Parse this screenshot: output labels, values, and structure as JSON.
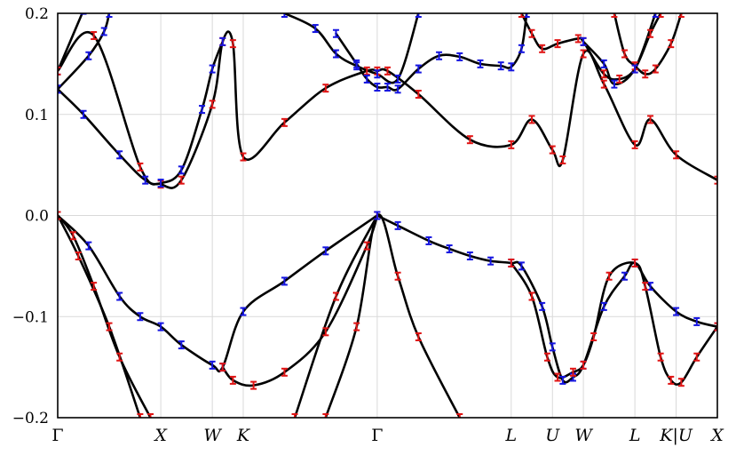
{
  "chart_data": {
    "type": "line",
    "title": "",
    "xlabel": "",
    "ylabel": "",
    "ylim": [
      -0.2,
      0.2
    ],
    "yticks": [
      {
        "value": 0.2,
        "label": "0.2"
      },
      {
        "value": 0.1,
        "label": "0.1"
      },
      {
        "value": 0.0,
        "label": "0.0"
      },
      {
        "value": -0.1,
        "label": "−0.1"
      },
      {
        "value": -0.2,
        "label": "−0.2"
      }
    ],
    "xticks": [
      {
        "k": 0.0,
        "label": "Γ",
        "italic": false
      },
      {
        "k": 1.0,
        "label": "X",
        "italic": true
      },
      {
        "k": 1.5,
        "label": "W",
        "italic": true
      },
      {
        "k": 1.8,
        "label": "K",
        "italic": true
      },
      {
        "k": 3.1,
        "label": "Γ",
        "italic": false
      },
      {
        "k": 4.4,
        "label": "L",
        "italic": true
      },
      {
        "k": 4.8,
        "label": "U",
        "italic": true
      },
      {
        "k": 5.1,
        "label": "W",
        "italic": true
      },
      {
        "k": 5.6,
        "label": "L",
        "italic": true
      },
      {
        "k": 6.0,
        "label": "K|U",
        "italic": true
      },
      {
        "k": 6.4,
        "label": "X",
        "italic": true
      }
    ],
    "xlim": [
      0,
      6.4
    ],
    "grid": true,
    "line_color": "#000000",
    "marker_colors": {
      "blue": "#1515e0",
      "red": "#e01515"
    },
    "series": [
      {
        "color": "black",
        "points": [
          [
            0,
            0.143
          ],
          [
            0.25,
            0.203
          ]
        ],
        "markers": "blue"
      },
      {
        "color": "black",
        "points": [
          [
            0,
            0.143
          ],
          [
            0.35,
            0.178
          ],
          [
            0.8,
            0.048
          ],
          [
            1.0,
            0.031
          ],
          [
            1.2,
            0.035
          ],
          [
            1.5,
            0.11
          ],
          [
            1.6,
            0.172
          ],
          [
            1.7,
            0.17
          ],
          [
            1.8,
            0.058
          ],
          [
            2.2,
            0.092
          ],
          [
            2.6,
            0.126
          ],
          [
            3.0,
            0.143
          ],
          [
            3.1,
            0.143
          ],
          [
            3.2,
            0.143
          ],
          [
            3.5,
            0.12
          ],
          [
            4.0,
            0.075
          ],
          [
            4.4,
            0.07
          ],
          [
            4.6,
            0.095
          ],
          [
            4.8,
            0.065
          ],
          [
            4.9,
            0.055
          ],
          [
            5.1,
            0.16
          ],
          [
            5.3,
            0.13
          ],
          [
            5.6,
            0.07
          ],
          [
            5.75,
            0.095
          ],
          [
            6.0,
            0.06
          ],
          [
            6.4,
            0.035
          ]
        ],
        "markers": "red"
      },
      {
        "color": "black",
        "points": [
          [
            0,
            0.125
          ],
          [
            0.25,
            0.1
          ],
          [
            0.6,
            0.06
          ],
          [
            0.85,
            0.035
          ],
          [
            1.0,
            0.032
          ],
          [
            1.2,
            0.045
          ],
          [
            1.4,
            0.105
          ],
          [
            1.5,
            0.145
          ],
          [
            1.6,
            0.172
          ]
        ],
        "markers": "blue"
      },
      {
        "color": "black",
        "points": [
          [
            0,
            0.125
          ],
          [
            0.3,
            0.158
          ],
          [
            0.45,
            0.182
          ],
          [
            0.5,
            0.2
          ]
        ],
        "markers": "blue"
      },
      {
        "color": "black",
        "points": [
          [
            2.2,
            0.2
          ],
          [
            2.5,
            0.185
          ],
          [
            2.7,
            0.16
          ],
          [
            2.9,
            0.148
          ],
          [
            3.1,
            0.14
          ],
          [
            3.3,
            0.135
          ],
          [
            3.5,
            0.2
          ]
        ],
        "markers": "blue"
      },
      {
        "color": "black",
        "points": [
          [
            2.7,
            0.18
          ],
          [
            2.9,
            0.15
          ],
          [
            3.0,
            0.135
          ],
          [
            3.1,
            0.127
          ],
          [
            3.2,
            0.127
          ],
          [
            3.3,
            0.125
          ],
          [
            3.5,
            0.145
          ],
          [
            3.7,
            0.158
          ],
          [
            3.9,
            0.157
          ],
          [
            4.1,
            0.15
          ],
          [
            4.3,
            0.148
          ],
          [
            4.4,
            0.147
          ],
          [
            4.5,
            0.165
          ],
          [
            4.55,
            0.2
          ]
        ],
        "markers": "blue"
      },
      {
        "color": "black",
        "points": [
          [
            4.5,
            0.2
          ],
          [
            4.6,
            0.18
          ],
          [
            4.7,
            0.165
          ],
          [
            4.85,
            0.17
          ],
          [
            5.05,
            0.175
          ],
          [
            5.1,
            0.172
          ],
          [
            5.3,
            0.14
          ],
          [
            5.45,
            0.135
          ],
          [
            5.6,
            0.145
          ],
          [
            5.75,
            0.18
          ],
          [
            5.85,
            0.2
          ]
        ],
        "markers": "red"
      },
      {
        "color": "black",
        "points": [
          [
            5.4,
            0.2
          ],
          [
            5.5,
            0.16
          ],
          [
            5.6,
            0.148
          ],
          [
            5.7,
            0.14
          ],
          [
            5.8,
            0.145
          ],
          [
            5.95,
            0.17
          ],
          [
            6.05,
            0.2
          ]
        ],
        "markers": "red"
      },
      {
        "color": "black",
        "points": [
          [
            5.1,
            0.172
          ],
          [
            5.3,
            0.15
          ],
          [
            5.4,
            0.13
          ],
          [
            5.6,
            0.145
          ],
          [
            5.8,
            0.2
          ]
        ],
        "markers": "blue"
      },
      {
        "color": "black",
        "points": [
          [
            0,
            0.0
          ],
          [
            0.3,
            -0.03
          ],
          [
            0.6,
            -0.08
          ],
          [
            0.8,
            -0.1
          ],
          [
            1.0,
            -0.11
          ],
          [
            1.2,
            -0.128
          ],
          [
            1.5,
            -0.148
          ],
          [
            1.6,
            -0.15
          ],
          [
            1.8,
            -0.095
          ],
          [
            2.2,
            -0.065
          ],
          [
            2.6,
            -0.035
          ],
          [
            3.1,
            0.0
          ]
        ],
        "markers": "blue"
      },
      {
        "color": "black",
        "points": [
          [
            0,
            0.0
          ],
          [
            0.2,
            -0.04
          ],
          [
            0.5,
            -0.11
          ],
          [
            0.8,
            -0.2
          ]
        ],
        "markers": "red"
      },
      {
        "color": "black",
        "points": [
          [
            0,
            0.0
          ],
          [
            0.15,
            -0.02
          ],
          [
            0.35,
            -0.07
          ],
          [
            0.6,
            -0.14
          ],
          [
            0.9,
            -0.2
          ]
        ],
        "markers": "red"
      },
      {
        "color": "black",
        "points": [
          [
            1.6,
            -0.15
          ],
          [
            1.7,
            -0.163
          ],
          [
            1.9,
            -0.168
          ],
          [
            2.2,
            -0.155
          ],
          [
            2.6,
            -0.115
          ],
          [
            3.0,
            -0.03
          ],
          [
            3.1,
            0.0
          ]
        ],
        "markers": "red"
      },
      {
        "color": "black",
        "points": [
          [
            2.6,
            -0.2
          ],
          [
            2.9,
            -0.11
          ],
          [
            3.1,
            0.0
          ],
          [
            3.3,
            -0.06
          ],
          [
            3.5,
            -0.12
          ],
          [
            3.9,
            -0.2
          ]
        ],
        "markers": "red"
      },
      {
        "color": "black",
        "points": [
          [
            2.3,
            -0.2
          ],
          [
            2.7,
            -0.08
          ],
          [
            3.1,
            0.0
          ]
        ],
        "markers": "red"
      },
      {
        "color": "black",
        "points": [
          [
            3.1,
            0.0
          ],
          [
            3.3,
            -0.01
          ],
          [
            3.6,
            -0.025
          ],
          [
            3.8,
            -0.033
          ],
          [
            4.0,
            -0.04
          ],
          [
            4.2,
            -0.045
          ],
          [
            4.4,
            -0.047
          ],
          [
            4.5,
            -0.05
          ],
          [
            4.7,
            -0.09
          ],
          [
            4.8,
            -0.13
          ],
          [
            4.9,
            -0.163
          ],
          [
            5.0,
            -0.16
          ],
          [
            5.1,
            -0.148
          ],
          [
            5.3,
            -0.09
          ],
          [
            5.5,
            -0.06
          ],
          [
            5.6,
            -0.047
          ],
          [
            5.75,
            -0.07
          ],
          [
            6.0,
            -0.095
          ],
          [
            6.2,
            -0.105
          ],
          [
            6.4,
            -0.11
          ]
        ],
        "markers": "blue"
      },
      {
        "color": "black",
        "points": [
          [
            4.4,
            -0.047
          ],
          [
            4.6,
            -0.08
          ],
          [
            4.75,
            -0.14
          ],
          [
            4.85,
            -0.16
          ],
          [
            5.0,
            -0.155
          ],
          [
            5.1,
            -0.148
          ],
          [
            5.2,
            -0.12
          ],
          [
            5.35,
            -0.06
          ],
          [
            5.6,
            -0.047
          ],
          [
            5.7,
            -0.07
          ],
          [
            5.85,
            -0.14
          ],
          [
            5.95,
            -0.163
          ],
          [
            6.05,
            -0.165
          ],
          [
            6.2,
            -0.14
          ],
          [
            6.4,
            -0.11
          ]
        ],
        "markers": "red"
      }
    ]
  }
}
